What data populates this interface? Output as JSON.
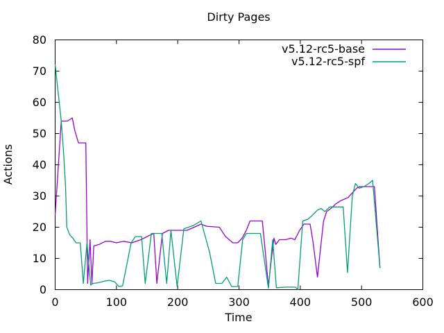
{
  "window": {
    "background": "#ffffff",
    "frame_color": "#000000",
    "text_color": "#000000"
  },
  "chart_data": {
    "type": "line",
    "title": "Dirty Pages",
    "xlabel": "Time",
    "ylabel": "Actions",
    "xlim": [
      0,
      600
    ],
    "ylim": [
      0,
      80
    ],
    "xtick_step": 100,
    "ytick_step": 10,
    "xticks": [
      0,
      100,
      200,
      300,
      400,
      500,
      600
    ],
    "yticks": [
      0,
      10,
      20,
      30,
      40,
      50,
      60,
      70,
      80
    ],
    "grid": false,
    "legend_position": "top-right-inside",
    "series": [
      {
        "name": "v5.12-rc5-base",
        "color": "#9400d3",
        "points": [
          [
            0,
            24
          ],
          [
            10,
            54
          ],
          [
            20,
            54
          ],
          [
            28,
            55
          ],
          [
            32,
            51
          ],
          [
            38,
            47
          ],
          [
            50,
            47
          ],
          [
            53,
            2
          ],
          [
            57,
            16
          ],
          [
            60,
            2
          ],
          [
            63,
            14
          ],
          [
            72,
            14.5
          ],
          [
            82,
            15.5
          ],
          [
            90,
            15.5
          ],
          [
            100,
            15
          ],
          [
            112,
            15.5
          ],
          [
            125,
            15
          ],
          [
            140,
            16
          ],
          [
            155,
            17.5
          ],
          [
            161,
            18
          ],
          [
            166,
            2
          ],
          [
            175,
            18
          ],
          [
            185,
            19
          ],
          [
            215,
            19
          ],
          [
            227,
            20
          ],
          [
            238,
            21
          ],
          [
            247,
            20.3
          ],
          [
            268,
            20
          ],
          [
            278,
            17
          ],
          [
            290,
            15
          ],
          [
            298,
            15
          ],
          [
            305,
            16.5
          ],
          [
            312,
            19
          ],
          [
            318,
            22
          ],
          [
            338,
            22
          ],
          [
            343,
            12
          ],
          [
            348,
            1
          ],
          [
            353,
            10
          ],
          [
            357,
            16.5
          ],
          [
            360,
            14.5
          ],
          [
            366,
            16
          ],
          [
            376,
            16
          ],
          [
            385,
            16.5
          ],
          [
            391,
            16
          ],
          [
            399,
            19
          ],
          [
            406,
            21
          ],
          [
            416,
            21
          ],
          [
            421,
            15
          ],
          [
            428,
            4
          ],
          [
            434,
            15
          ],
          [
            438,
            22
          ],
          [
            443,
            25
          ],
          [
            450,
            26
          ],
          [
            458,
            27.5
          ],
          [
            466,
            28.5
          ],
          [
            472,
            29
          ],
          [
            478,
            29.5
          ],
          [
            485,
            31
          ],
          [
            492,
            32.5
          ],
          [
            497,
            33
          ],
          [
            515,
            33
          ],
          [
            521,
            33
          ],
          [
            530,
            7
          ]
        ]
      },
      {
        "name": "v5.12-rc5-spf",
        "color": "#009e73",
        "points": [
          [
            0,
            72
          ],
          [
            10,
            54
          ],
          [
            14,
            43
          ],
          [
            17,
            33
          ],
          [
            19,
            20
          ],
          [
            24,
            17.5
          ],
          [
            29,
            16.5
          ],
          [
            34,
            15
          ],
          [
            41,
            15
          ],
          [
            46,
            2
          ],
          [
            52,
            15
          ],
          [
            58,
            1.5
          ],
          [
            62,
            2
          ],
          [
            70,
            2.2
          ],
          [
            80,
            2.7
          ],
          [
            88,
            3
          ],
          [
            97,
            2.5
          ],
          [
            104,
            1
          ],
          [
            110,
            1.2
          ],
          [
            124,
            15
          ],
          [
            131,
            17
          ],
          [
            141,
            17
          ],
          [
            147,
            2
          ],
          [
            157,
            18
          ],
          [
            174,
            18
          ],
          [
            182,
            2
          ],
          [
            189,
            19
          ],
          [
            199,
            1
          ],
          [
            210,
            19.5
          ],
          [
            225,
            20.5
          ],
          [
            238,
            22
          ],
          [
            252,
            12
          ],
          [
            262,
            2
          ],
          [
            272,
            2
          ],
          [
            280,
            4
          ],
          [
            288,
            1
          ],
          [
            298,
            1
          ],
          [
            306,
            16
          ],
          [
            312,
            18
          ],
          [
            335,
            18
          ],
          [
            348,
            0.5
          ],
          [
            355,
            16
          ],
          [
            361,
            0.6
          ],
          [
            375,
            0.8
          ],
          [
            392,
            0.8
          ],
          [
            396,
            0
          ],
          [
            404,
            22
          ],
          [
            412,
            22.5
          ],
          [
            418,
            23.5
          ],
          [
            428,
            25.5
          ],
          [
            434,
            26
          ],
          [
            440,
            25
          ],
          [
            448,
            26.5
          ],
          [
            470,
            26.5
          ],
          [
            477,
            5.5
          ],
          [
            485,
            30
          ],
          [
            490,
            34
          ],
          [
            496,
            32.5
          ],
          [
            504,
            33
          ],
          [
            512,
            34
          ],
          [
            518,
            35
          ],
          [
            530,
            7
          ]
        ]
      }
    ]
  },
  "legend": {
    "entries": [
      {
        "label": "v5.12-rc5-base",
        "color": "#9400d3"
      },
      {
        "label": "v5.12-rc5-spf",
        "color": "#009e73"
      }
    ]
  }
}
